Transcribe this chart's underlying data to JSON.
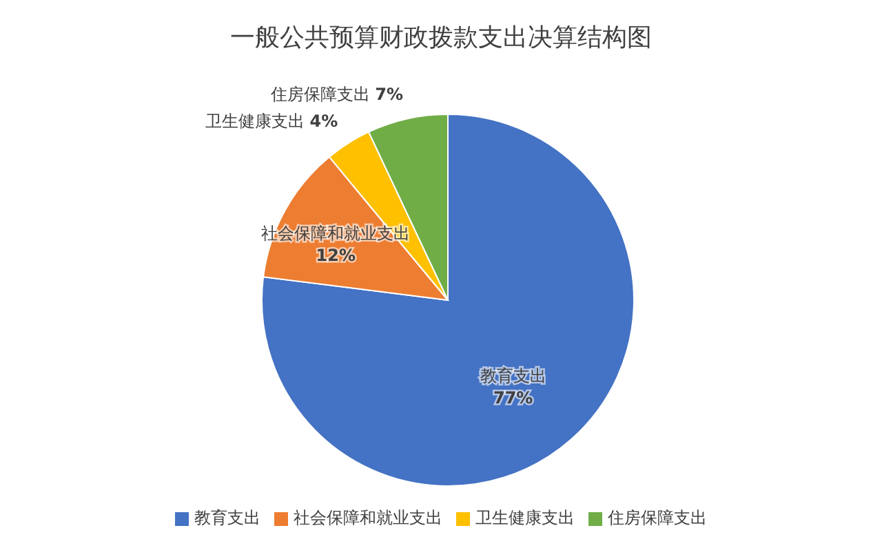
{
  "chart_data": {
    "type": "pie",
    "title": "一般公共预算财政拨款支出决算结构图",
    "categories": [
      "教育支出",
      "社会保障和就业支出",
      "卫生健康支出",
      "住房保障支出"
    ],
    "values": [
      77,
      12,
      4,
      7
    ],
    "value_labels": [
      "77%",
      "12%",
      "4%",
      "7%"
    ],
    "colors": [
      "#4472c4",
      "#ed7d31",
      "#ffc000",
      "#70ad47"
    ],
    "legend": "bottom"
  }
}
